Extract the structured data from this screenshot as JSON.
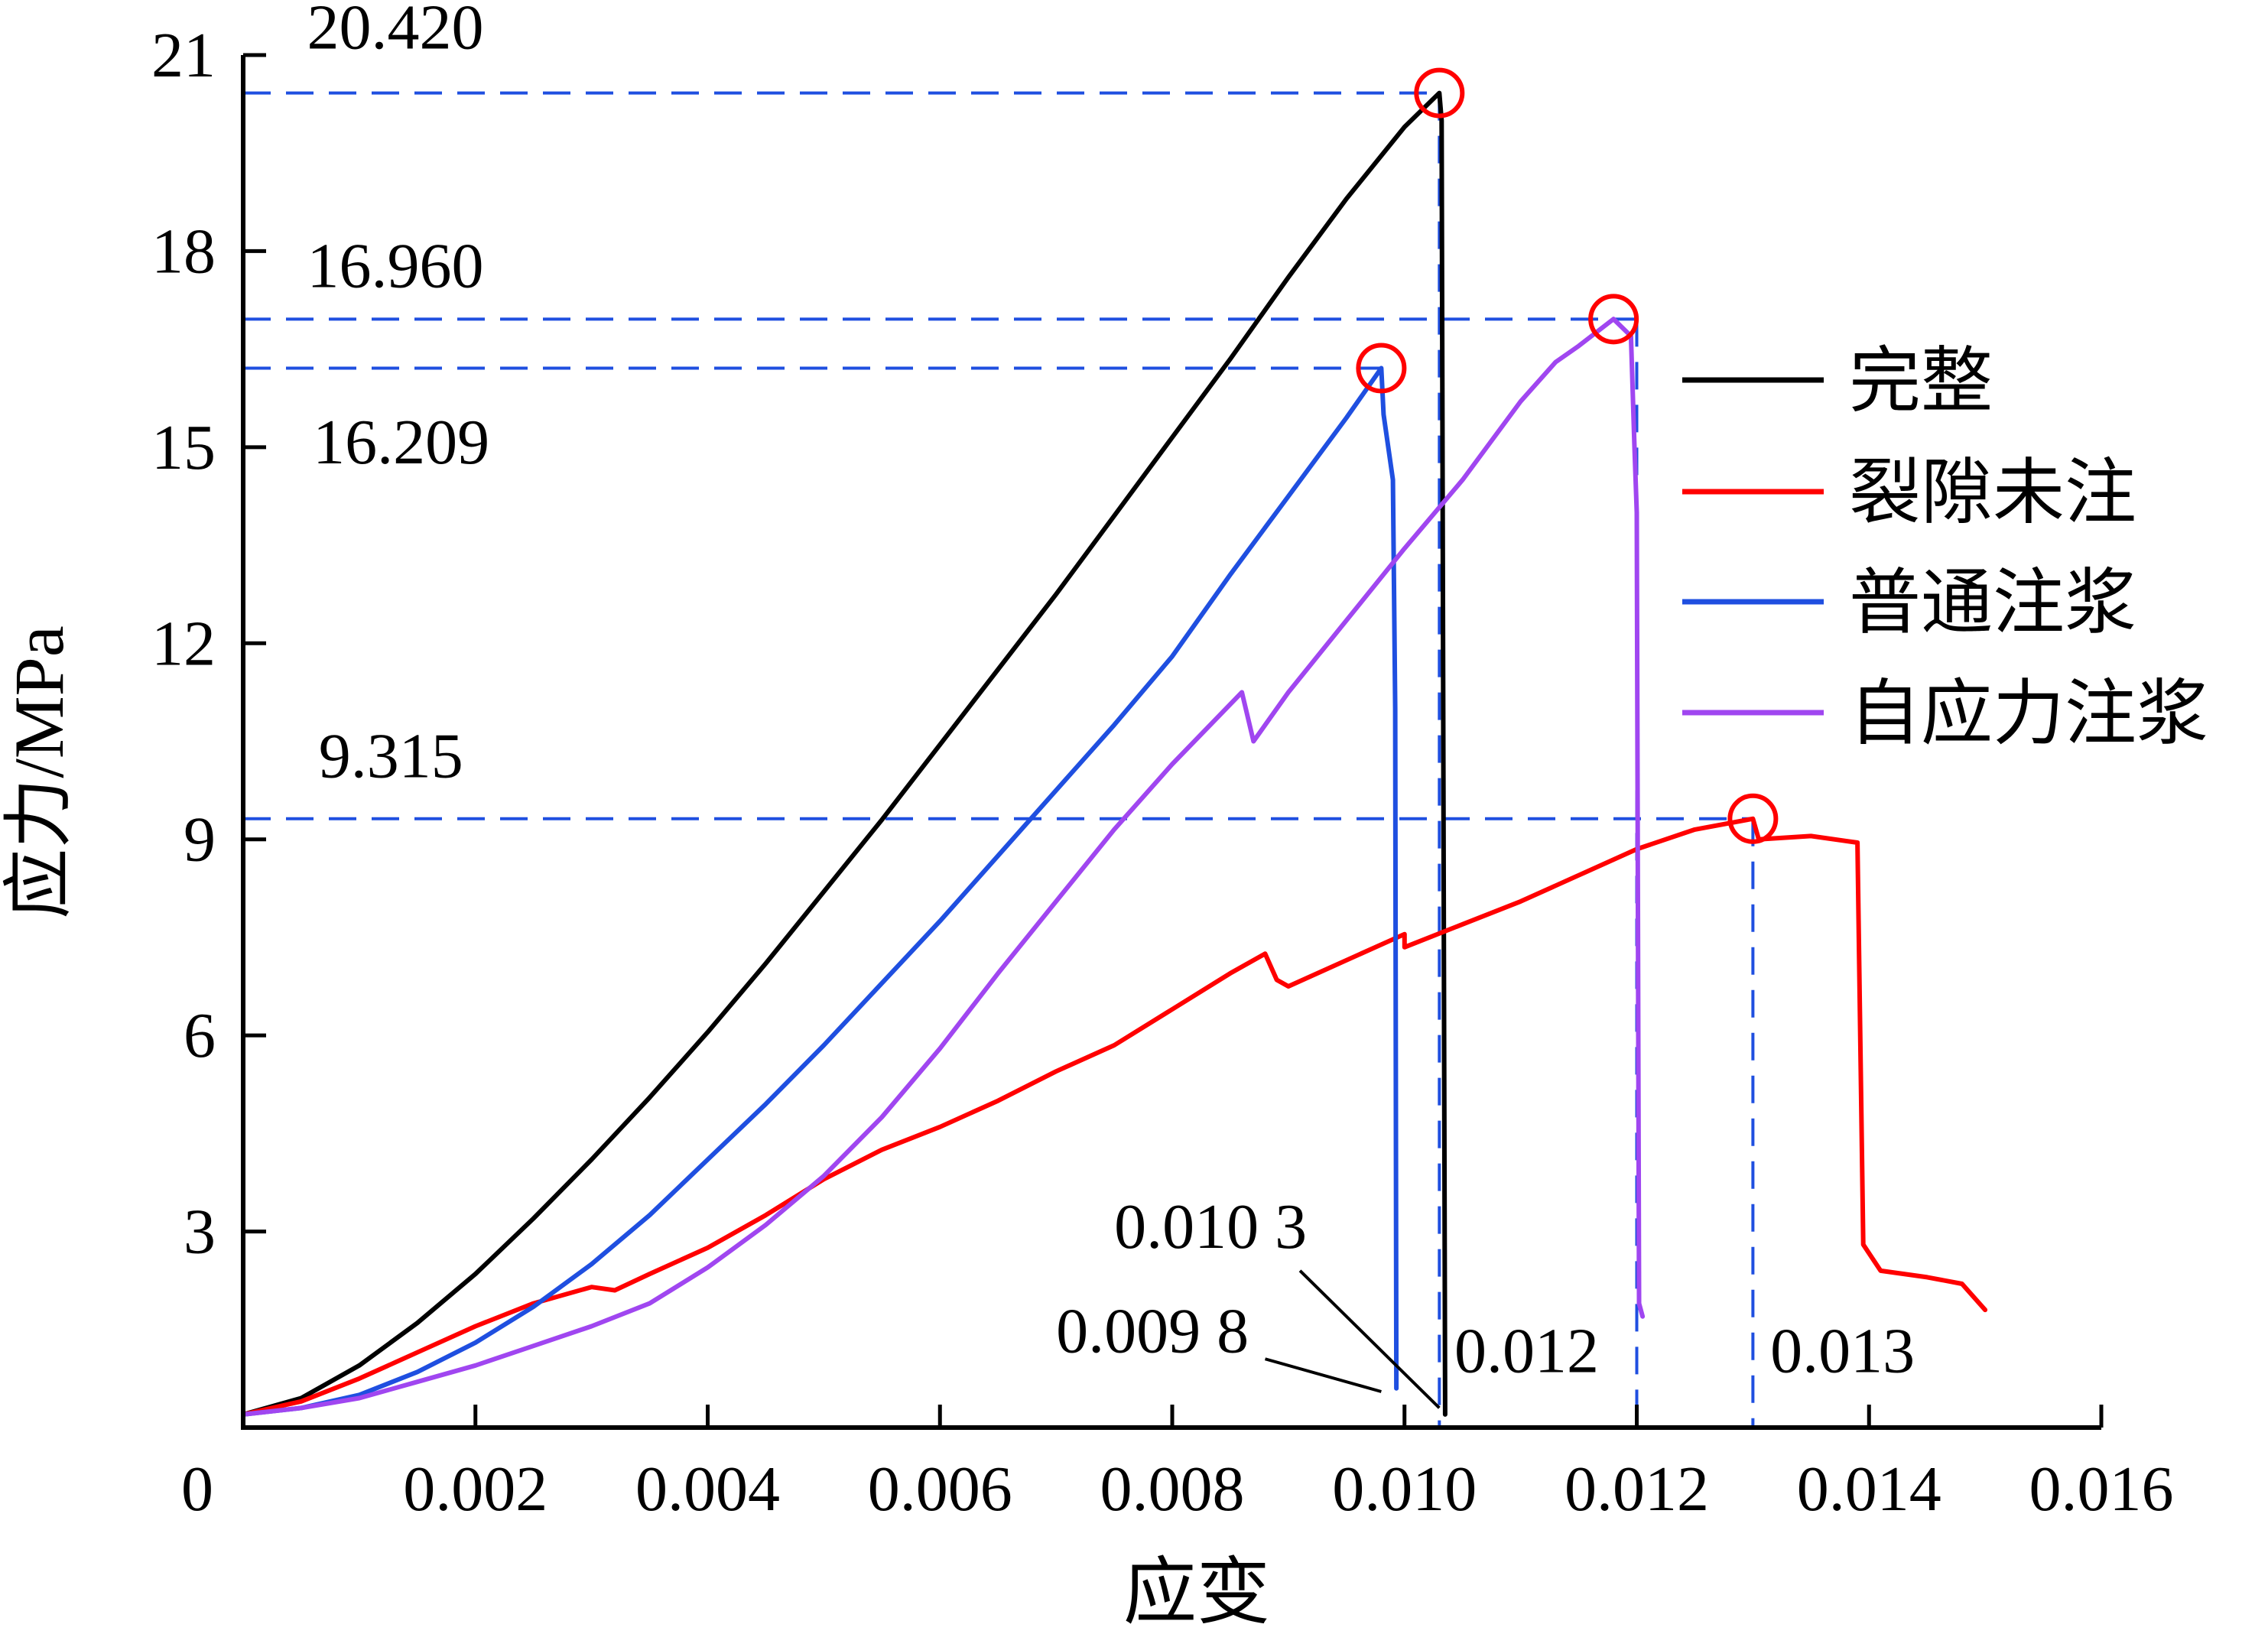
{
  "chart_data": {
    "type": "line",
    "xlabel": "应变",
    "ylabel": "应力/MPa",
    "xlim": [
      0,
      0.016
    ],
    "ylim": [
      0,
      21
    ],
    "x_ticks": [
      "0",
      "0.002",
      "0.004",
      "0.006",
      "0.008",
      "0.010",
      "0.012",
      "0.014",
      "0.016"
    ],
    "y_ticks": [
      "3",
      "6",
      "9",
      "12",
      "15",
      "18",
      "21"
    ],
    "x_tick_values": [
      0,
      0.002,
      0.004,
      0.006,
      0.008,
      0.01,
      0.012,
      0.014,
      0.016
    ],
    "y_tick_values": [
      3,
      6,
      9,
      12,
      15,
      18,
      21
    ],
    "legend_position": "right",
    "series": [
      {
        "name": "完整",
        "color": "#000000",
        "points": [
          [
            0,
            0.2
          ],
          [
            0.0005,
            0.45
          ],
          [
            0.001,
            0.95
          ],
          [
            0.0015,
            1.6
          ],
          [
            0.002,
            2.35
          ],
          [
            0.0025,
            3.2
          ],
          [
            0.003,
            4.1
          ],
          [
            0.0035,
            5.05
          ],
          [
            0.004,
            6.05
          ],
          [
            0.0045,
            7.1
          ],
          [
            0.005,
            8.2
          ],
          [
            0.0055,
            9.3
          ],
          [
            0.006,
            10.45
          ],
          [
            0.0065,
            11.6
          ],
          [
            0.007,
            12.75
          ],
          [
            0.0075,
            13.95
          ],
          [
            0.008,
            15.15
          ],
          [
            0.0085,
            16.35
          ],
          [
            0.009,
            17.6
          ],
          [
            0.0095,
            18.8
          ],
          [
            0.01,
            19.9
          ],
          [
            0.0103,
            20.42
          ],
          [
            0.01032,
            20.0
          ],
          [
            0.01035,
            0.2
          ]
        ]
      },
      {
        "name": "裂隙未注",
        "color": "#ff0000",
        "points": [
          [
            0,
            0.2
          ],
          [
            0.0005,
            0.4
          ],
          [
            0.001,
            0.75
          ],
          [
            0.0015,
            1.15
          ],
          [
            0.002,
            1.55
          ],
          [
            0.0025,
            1.9
          ],
          [
            0.003,
            2.15
          ],
          [
            0.0032,
            2.1
          ],
          [
            0.0035,
            2.35
          ],
          [
            0.004,
            2.75
          ],
          [
            0.0045,
            3.25
          ],
          [
            0.005,
            3.8
          ],
          [
            0.0055,
            4.25
          ],
          [
            0.006,
            4.6
          ],
          [
            0.0065,
            5.0
          ],
          [
            0.007,
            5.45
          ],
          [
            0.0075,
            5.85
          ],
          [
            0.008,
            6.4
          ],
          [
            0.0085,
            6.95
          ],
          [
            0.0088,
            7.25
          ],
          [
            0.0089,
            6.85
          ],
          [
            0.009,
            6.75
          ],
          [
            0.0095,
            7.15
          ],
          [
            0.01,
            7.55
          ],
          [
            0.01,
            7.35
          ],
          [
            0.0105,
            7.7
          ],
          [
            0.011,
            8.05
          ],
          [
            0.0115,
            8.45
          ],
          [
            0.012,
            8.85
          ],
          [
            0.0125,
            9.15
          ],
          [
            0.013,
            9.315
          ],
          [
            0.01305,
            9.0
          ],
          [
            0.0135,
            9.05
          ],
          [
            0.0139,
            8.95
          ],
          [
            0.01395,
            2.8
          ],
          [
            0.0141,
            2.4
          ],
          [
            0.0145,
            2.3
          ],
          [
            0.0148,
            2.2
          ],
          [
            0.015,
            1.8
          ]
        ]
      },
      {
        "name": "普通注浆",
        "color": "#1f4fe0",
        "points": [
          [
            0,
            0.2
          ],
          [
            0.0005,
            0.3
          ],
          [
            0.001,
            0.5
          ],
          [
            0.0015,
            0.85
          ],
          [
            0.002,
            1.3
          ],
          [
            0.0025,
            1.85
          ],
          [
            0.003,
            2.5
          ],
          [
            0.0035,
            3.25
          ],
          [
            0.004,
            4.1
          ],
          [
            0.0045,
            4.95
          ],
          [
            0.005,
            5.85
          ],
          [
            0.0055,
            6.8
          ],
          [
            0.006,
            7.75
          ],
          [
            0.0065,
            8.75
          ],
          [
            0.007,
            9.75
          ],
          [
            0.0075,
            10.75
          ],
          [
            0.008,
            11.8
          ],
          [
            0.0085,
            13.05
          ],
          [
            0.009,
            14.25
          ],
          [
            0.0095,
            15.45
          ],
          [
            0.0098,
            16.209
          ],
          [
            0.00982,
            15.5
          ],
          [
            0.0099,
            14.5
          ],
          [
            0.00992,
            11.0
          ],
          [
            0.00993,
            0.6
          ]
        ]
      },
      {
        "name": "自应力注浆",
        "color": "#a046f0",
        "points": [
          [
            0,
            0.2
          ],
          [
            0.0005,
            0.3
          ],
          [
            0.001,
            0.45
          ],
          [
            0.0015,
            0.7
          ],
          [
            0.002,
            0.95
          ],
          [
            0.0025,
            1.25
          ],
          [
            0.003,
            1.55
          ],
          [
            0.0035,
            1.9
          ],
          [
            0.004,
            2.45
          ],
          [
            0.0045,
            3.1
          ],
          [
            0.005,
            3.85
          ],
          [
            0.0055,
            4.75
          ],
          [
            0.006,
            5.8
          ],
          [
            0.0065,
            6.95
          ],
          [
            0.007,
            8.05
          ],
          [
            0.0075,
            9.15
          ],
          [
            0.008,
            10.15
          ],
          [
            0.0086,
            11.25
          ],
          [
            0.0087,
            10.5
          ],
          [
            0.009,
            11.25
          ],
          [
            0.0095,
            12.35
          ],
          [
            0.01,
            13.45
          ],
          [
            0.0105,
            14.5
          ],
          [
            0.011,
            15.7
          ],
          [
            0.0113,
            16.3
          ],
          [
            0.0115,
            16.55
          ],
          [
            0.0118,
            16.96
          ],
          [
            0.01195,
            16.7
          ],
          [
            0.01198,
            15.0
          ],
          [
            0.012,
            14.0
          ],
          [
            0.01202,
            1.9
          ],
          [
            0.01205,
            1.7
          ]
        ]
      }
    ],
    "peak_markers": [
      {
        "x": 0.0103,
        "y": 20.42
      },
      {
        "x": 0.0098,
        "y": 16.209
      },
      {
        "x": 0.0118,
        "y": 16.96
      },
      {
        "x": 0.013,
        "y": 9.315
      }
    ],
    "reference_lines": {
      "color": "#1f4fe0",
      "horizontal": [
        {
          "y": 20.42,
          "x_end": 0.0103
        },
        {
          "y": 16.96,
          "x_end": 0.012
        },
        {
          "y": 16.209,
          "x_end": 0.0098
        },
        {
          "y": 9.315,
          "x_end": 0.013
        }
      ],
      "vertical": [
        {
          "x": 0.0103,
          "y_top": 20.42
        },
        {
          "x": 0.012,
          "y_top": 16.96
        },
        {
          "x": 0.013,
          "y_top": 9.315
        }
      ]
    },
    "annotations": [
      {
        "text": "20.420",
        "x": 0.00055,
        "y": 21.1
      },
      {
        "text": "16.960",
        "x": 0.00055,
        "y": 17.45
      },
      {
        "text": "16.209",
        "x": 0.0006,
        "y": 14.75
      },
      {
        "text": "9.315",
        "x": 0.00065,
        "y": 9.95
      },
      {
        "text": "0.010 3",
        "x": 0.0075,
        "y": 2.75
      },
      {
        "text": "0.009 8",
        "x": 0.007,
        "y": 1.15
      },
      {
        "text": "0.012",
        "x": 0.01043,
        "y": 0.85
      },
      {
        "text": "0.013",
        "x": 0.01315,
        "y": 0.85
      }
    ],
    "leader_lines": [
      {
        "from": [
          0.0091,
          2.4
        ],
        "to": [
          0.0103,
          0.3
        ]
      },
      {
        "from": [
          0.0088,
          1.05
        ],
        "to": [
          0.0098,
          0.55
        ]
      }
    ]
  },
  "colors": {
    "peak_marker": "#ff0000",
    "axis": "#000000"
  }
}
